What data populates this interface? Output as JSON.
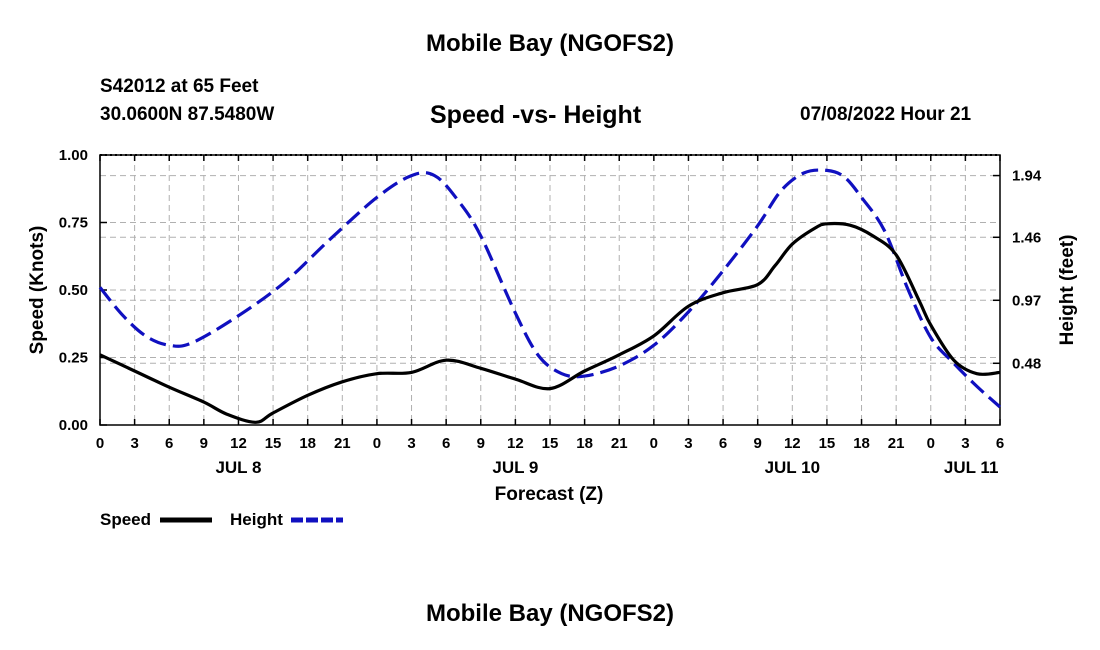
{
  "header": {
    "title": "Mobile Bay (NGOFS2)",
    "station": "S42012 at 65 Feet",
    "coords": "30.0600N  87.5480W",
    "datetime": "07/08/2022 Hour 21",
    "footer_title": "Mobile Bay (NGOFS2)"
  },
  "chart_data": {
    "type": "line",
    "title": "Speed -vs- Height",
    "xlabel": "Forecast (Z)",
    "ylabel_left": "Speed (Knots)",
    "ylabel_right": "Height (feet)",
    "x_unit": "forecast hour from JUL 8 00Z",
    "xlim": [
      0,
      78
    ],
    "ylim_left": [
      0,
      1.0
    ],
    "yticks_left": [
      0.0,
      0.25,
      0.5,
      0.75,
      1.0
    ],
    "yticklabels_left": [
      "0.00",
      "0.25",
      "0.50",
      "0.75",
      "1.00"
    ],
    "ylim_right": [
      0.0,
      2.1
    ],
    "yticks_right": [
      0.48,
      0.97,
      1.46,
      1.94
    ],
    "yticklabels_right": [
      "0.48",
      "0.97",
      "1.46",
      "1.94"
    ],
    "xticks": [
      0,
      3,
      6,
      9,
      12,
      15,
      18,
      21,
      24,
      27,
      30,
      33,
      36,
      39,
      42,
      45,
      48,
      51,
      54,
      57,
      60,
      63,
      66,
      69,
      72,
      75,
      78
    ],
    "xticklabels": [
      "0",
      "3",
      "6",
      "9",
      "12",
      "15",
      "18",
      "21",
      "0",
      "3",
      "6",
      "9",
      "12",
      "15",
      "18",
      "21",
      "0",
      "3",
      "6",
      "9",
      "12",
      "15",
      "18",
      "21",
      "0",
      "3",
      "6"
    ],
    "day_labels": [
      {
        "x": 12,
        "label": "JUL 8"
      },
      {
        "x": 36,
        "label": "JUL 9"
      },
      {
        "x": 60,
        "label": "JUL 10"
      },
      {
        "x": 75.5,
        "label": "JUL 11"
      }
    ],
    "grid": true,
    "legend": [
      {
        "name": "Speed",
        "color": "#000000",
        "style": "solid"
      },
      {
        "name": "Height",
        "color": "#1010c0",
        "style": "dashed"
      }
    ],
    "series": [
      {
        "name": "Speed",
        "axis": "left",
        "color": "#000000",
        "style": "solid",
        "x": [
          0,
          3,
          6,
          9,
          11,
          13.5,
          15,
          18,
          21,
          24,
          27,
          30,
          33,
          36,
          39,
          42,
          45,
          48,
          51,
          54,
          57,
          58.5,
          60,
          62,
          63,
          65,
          67,
          69,
          71,
          72,
          74,
          76,
          78
        ],
        "y": [
          0.26,
          0.2,
          0.14,
          0.085,
          0.04,
          0.01,
          0.045,
          0.11,
          0.16,
          0.19,
          0.195,
          0.24,
          0.21,
          0.17,
          0.135,
          0.2,
          0.26,
          0.33,
          0.44,
          0.49,
          0.52,
          0.59,
          0.67,
          0.73,
          0.745,
          0.74,
          0.7,
          0.63,
          0.46,
          0.37,
          0.24,
          0.19,
          0.195
        ]
      },
      {
        "name": "Height",
        "axis": "right",
        "color": "#1010c0",
        "style": "dashed",
        "x": [
          0,
          2,
          4,
          6,
          8,
          12,
          16,
          20,
          24,
          27,
          29,
          31,
          33,
          36,
          38,
          40,
          42,
          45,
          48,
          51,
          54,
          57,
          59,
          61,
          63,
          64.5,
          66,
          68,
          70,
          72,
          74,
          76,
          78
        ],
        "y": [
          1.07,
          0.85,
          0.69,
          0.62,
          0.64,
          0.85,
          1.11,
          1.45,
          1.77,
          1.94,
          1.94,
          1.75,
          1.47,
          0.87,
          0.54,
          0.4,
          0.38,
          0.46,
          0.62,
          0.88,
          1.2,
          1.55,
          1.82,
          1.96,
          1.98,
          1.93,
          1.77,
          1.51,
          1.06,
          0.68,
          0.48,
          0.3,
          0.14
        ]
      }
    ]
  }
}
